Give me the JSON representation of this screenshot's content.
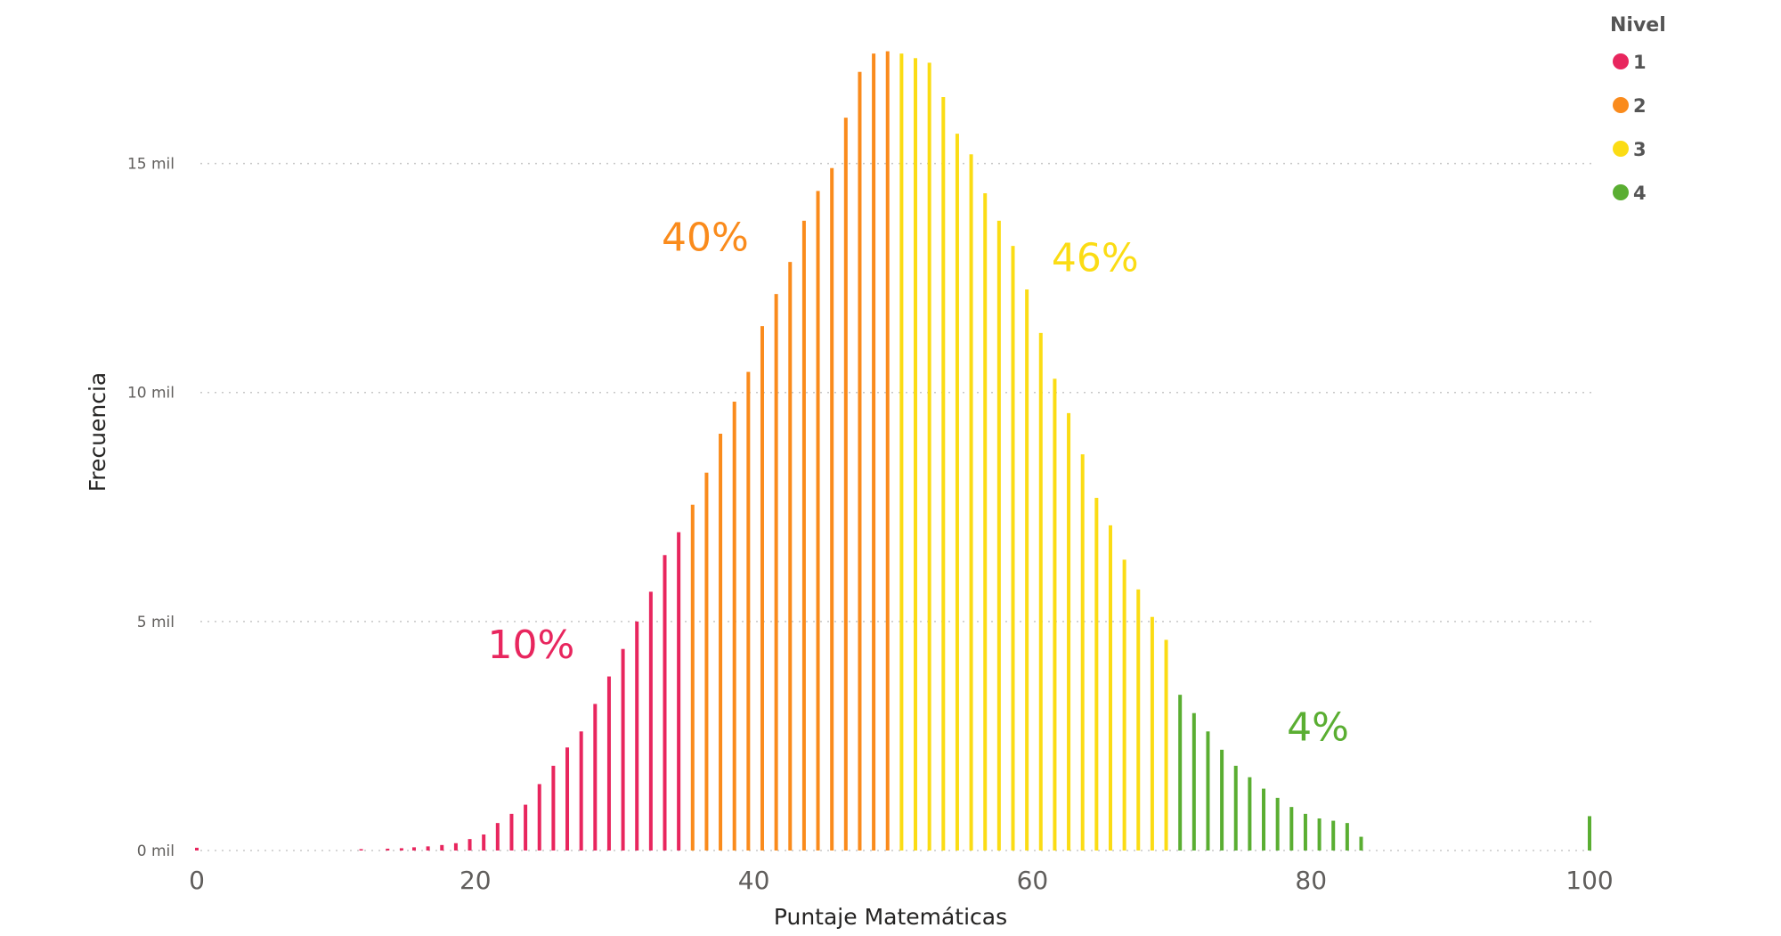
{
  "chart_data": {
    "type": "bar",
    "xlabel": "Puntaje Matemáticas",
    "ylabel": "Frecuencia",
    "xlim": [
      0,
      100
    ],
    "ylim": [
      0,
      17500
    ],
    "x_ticks": [
      "0",
      "20",
      "40",
      "60",
      "80",
      "100"
    ],
    "y_ticks": [
      "0 mil",
      "5 mil",
      "10 mil",
      "15 mil"
    ],
    "grid": "horizontal dotted",
    "legend": {
      "title": "Nivel",
      "position": "top-right",
      "entries": [
        {
          "label": "1",
          "color": "#e8265e"
        },
        {
          "label": "2",
          "color": "#fa8b1c"
        },
        {
          "label": "3",
          "color": "#fbdc14"
        },
        {
          "label": "4",
          "color": "#5aae32"
        }
      ]
    },
    "annotations": [
      {
        "text": "10%",
        "color": "#e8265e",
        "x": 24,
        "y": 4200
      },
      {
        "text": "40%",
        "color": "#fa8b1c",
        "x": 36.5,
        "y": 13100
      },
      {
        "text": "46%",
        "color": "#fbdc14",
        "x": 64.5,
        "y": 12650
      },
      {
        "text": "4%",
        "color": "#5aae32",
        "x": 80.5,
        "y": 2400
      }
    ],
    "series": [
      {
        "name": "1",
        "color": "#e8265e",
        "x": [
          0,
          11.8,
          13.7,
          14.7,
          15.6,
          16.6,
          17.6,
          18.6,
          19.6,
          20.6,
          21.6,
          22.6,
          23.6,
          24.6,
          25.6,
          26.6,
          27.6,
          28.6,
          29.6,
          30.6,
          31.6,
          32.6,
          33.6,
          34.6
        ],
        "values": [
          60,
          30,
          40,
          50,
          70,
          90,
          120,
          160,
          250,
          350,
          600,
          800,
          1000,
          1450,
          1850,
          2250,
          2600,
          3200,
          3800,
          4400,
          5000,
          5650,
          6450,
          6950
        ]
      },
      {
        "name": "2",
        "color": "#fa8b1c",
        "x": [
          35.6,
          36.6,
          37.6,
          38.6,
          39.6,
          40.6,
          41.6,
          42.6,
          43.6,
          44.6,
          45.6,
          46.6,
          47.6,
          48.6,
          49.6
        ],
        "values": [
          7550,
          8250,
          9100,
          9800,
          10450,
          11450,
          12150,
          12850,
          13750,
          14400,
          14900,
          16000,
          17000,
          17400,
          17450
        ]
      },
      {
        "name": "3",
        "color": "#fbdc14",
        "x": [
          50.6,
          51.6,
          52.6,
          53.6,
          54.6,
          55.6,
          56.6,
          57.6,
          58.6,
          59.6,
          60.6,
          61.6,
          62.6,
          63.6,
          64.6,
          65.6,
          66.6,
          67.6,
          68.6,
          69.6
        ],
        "values": [
          17400,
          17300,
          17200,
          16450,
          15650,
          15200,
          14350,
          13750,
          13200,
          12250,
          11300,
          10300,
          9550,
          8650,
          7700,
          7100,
          6350,
          5700,
          5100,
          4600
        ]
      },
      {
        "name": "4",
        "color": "#5aae32",
        "x": [
          70.6,
          71.6,
          72.6,
          73.6,
          74.6,
          75.6,
          76.6,
          77.6,
          78.6,
          79.6,
          80.6,
          81.6,
          82.6,
          83.6,
          100
        ],
        "values": [
          3400,
          3000,
          2600,
          2200,
          1850,
          1600,
          1350,
          1150,
          950,
          800,
          700,
          650,
          600,
          300,
          750
        ]
      }
    ]
  }
}
